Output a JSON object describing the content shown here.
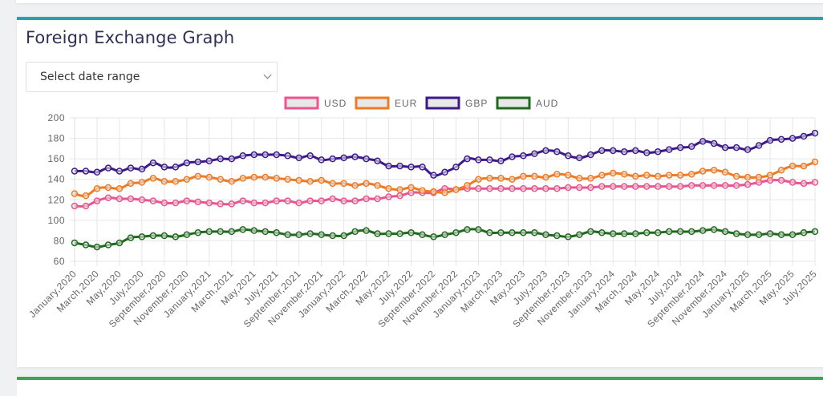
{
  "card": {
    "title": "Foreign Exchange Graph",
    "date_range_select": {
      "selected": "Select date range"
    }
  },
  "colors": {
    "card_top_border": "#2aa1b3",
    "next_card_border": "#3aa655",
    "title": "#2e3156"
  },
  "chart_data": {
    "type": "line",
    "title": "",
    "xlabel": "",
    "ylabel": "",
    "ylim": [
      60,
      200
    ],
    "yticks": [
      60,
      80,
      100,
      120,
      140,
      160,
      180,
      200
    ],
    "grid": true,
    "legend_position": "top-center",
    "x": [
      "January,2020",
      "February,2020",
      "March,2020",
      "April,2020",
      "May,2020",
      "June,2020",
      "July,2020",
      "August,2020",
      "September,2020",
      "October,2020",
      "November,2020",
      "December,2020",
      "January,2021",
      "February,2021",
      "March,2021",
      "April,2021",
      "May,2021",
      "June,2021",
      "July,2021",
      "August,2021",
      "September,2021",
      "October,2021",
      "November,2021",
      "December,2021",
      "January,2022",
      "February,2022",
      "March,2022",
      "April,2022",
      "May,2022",
      "June,2022",
      "July,2022",
      "August,2022",
      "September,2022",
      "October,2022",
      "November,2022",
      "December,2022",
      "January,2023",
      "February,2023",
      "March,2023",
      "April,2023",
      "May,2023",
      "June,2023",
      "July,2023",
      "August,2023",
      "September,2023",
      "October,2023",
      "November,2023",
      "December,2023",
      "January,2024",
      "February,2024",
      "March,2024",
      "April,2024",
      "May,2024",
      "June,2024",
      "July,2024",
      "August,2024",
      "September,2024",
      "October,2024",
      "November,2024",
      "December,2024",
      "January,2025",
      "February,2025",
      "March,2025",
      "April,2025",
      "May,2025",
      "June,2025",
      "July,2025"
    ],
    "xtick_labels_every": 2,
    "series": [
      {
        "name": "USD",
        "color": "#e8558f",
        "values": [
          114,
          114,
          119,
          122,
          121,
          121,
          120,
          119,
          117,
          117,
          119,
          118,
          117,
          116,
          116,
          119,
          117,
          117,
          119,
          119,
          117,
          119,
          119,
          121,
          119,
          119,
          121,
          121,
          123,
          124,
          127,
          127,
          127,
          131,
          130,
          131,
          131,
          131,
          131,
          131,
          131,
          131,
          131,
          131,
          132,
          132,
          132,
          133,
          133,
          133,
          133,
          133,
          133,
          133,
          133,
          134,
          134,
          134,
          134,
          134,
          135,
          137,
          139,
          139,
          137,
          136,
          137
        ]
      },
      {
        "name": "EUR",
        "color": "#ef7a24",
        "values": [
          126,
          124,
          131,
          132,
          131,
          136,
          137,
          141,
          138,
          138,
          140,
          143,
          142,
          140,
          138,
          141,
          142,
          142,
          141,
          140,
          139,
          138,
          139,
          136,
          136,
          134,
          136,
          134,
          131,
          130,
          132,
          129,
          128,
          127,
          130,
          134,
          140,
          141,
          141,
          140,
          143,
          143,
          142,
          145,
          144,
          141,
          141,
          144,
          146,
          145,
          143,
          144,
          143,
          144,
          144,
          145,
          148,
          149,
          147,
          143,
          142,
          142,
          144,
          149,
          153,
          153,
          157
        ]
      },
      {
        "name": "GBP",
        "color": "#3d1a8a",
        "values": [
          148,
          148,
          147,
          151,
          148,
          151,
          150,
          156,
          152,
          152,
          156,
          157,
          158,
          160,
          160,
          163,
          164,
          164,
          164,
          163,
          161,
          163,
          159,
          160,
          161,
          162,
          160,
          158,
          153,
          153,
          152,
          152,
          144,
          147,
          152,
          160,
          159,
          159,
          158,
          162,
          163,
          165,
          168,
          167,
          163,
          161,
          164,
          168,
          168,
          167,
          168,
          166,
          167,
          169,
          171,
          172,
          177,
          175,
          171,
          171,
          169,
          173,
          178,
          179,
          180,
          182,
          185
        ]
      },
      {
        "name": "AUD",
        "color": "#21691f",
        "values": [
          78,
          76,
          74,
          76,
          78,
          83,
          84,
          85,
          85,
          84,
          86,
          88,
          89,
          89,
          89,
          91,
          90,
          89,
          88,
          86,
          86,
          87,
          86,
          85,
          85,
          89,
          90,
          87,
          87,
          87,
          88,
          86,
          84,
          86,
          88,
          91,
          91,
          88,
          88,
          88,
          88,
          88,
          86,
          85,
          84,
          86,
          89,
          88,
          87,
          87,
          87,
          88,
          88,
          89,
          89,
          89,
          90,
          91,
          89,
          87,
          86,
          86,
          87,
          86,
          86,
          88,
          89
        ]
      }
    ]
  }
}
